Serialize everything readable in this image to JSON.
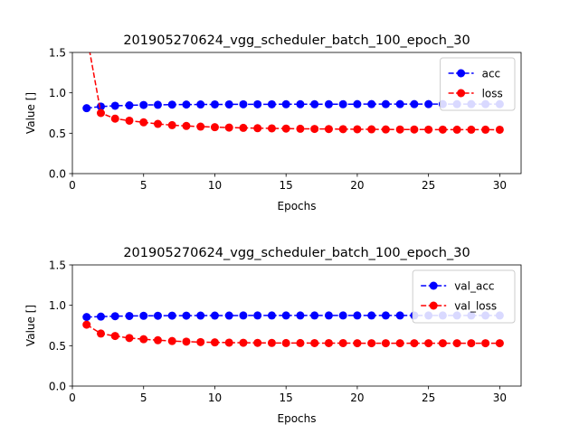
{
  "chart_data": [
    {
      "type": "line",
      "title": "201905270624_vgg_scheduler_batch_100_epoch_30",
      "xlabel": "Epochs",
      "ylabel": "Value []",
      "xlim": [
        0,
        31.5
      ],
      "ylim": [
        0.0,
        1.5
      ],
      "xticks": [
        0,
        5,
        10,
        15,
        20,
        25,
        30
      ],
      "yticks": [
        "0.0",
        "0.5",
        "1.0",
        "1.5"
      ],
      "grid": false,
      "legend_position": "top-right",
      "x": [
        1,
        2,
        3,
        4,
        5,
        6,
        7,
        8,
        9,
        10,
        11,
        12,
        13,
        14,
        15,
        16,
        17,
        18,
        19,
        20,
        21,
        22,
        23,
        24,
        25,
        26,
        27,
        28,
        29,
        30
      ],
      "series": [
        {
          "name": "acc",
          "color": "#0000ff",
          "values": [
            0.81,
            0.83,
            0.84,
            0.845,
            0.85,
            0.852,
            0.854,
            0.855,
            0.856,
            0.857,
            0.857,
            0.858,
            0.858,
            0.858,
            0.859,
            0.859,
            0.859,
            0.859,
            0.859,
            0.86,
            0.86,
            0.86,
            0.86,
            0.86,
            0.86,
            0.86,
            0.86,
            0.86,
            0.86,
            0.86
          ]
        },
        {
          "name": "loss",
          "color": "#ff0000",
          "values": [
            1.72,
            0.75,
            0.68,
            0.655,
            0.635,
            0.615,
            0.6,
            0.59,
            0.582,
            0.575,
            0.57,
            0.566,
            0.562,
            0.56,
            0.557,
            0.555,
            0.553,
            0.552,
            0.55,
            0.549,
            0.548,
            0.547,
            0.546,
            0.546,
            0.545,
            0.545,
            0.544,
            0.544,
            0.544,
            0.543
          ]
        }
      ]
    },
    {
      "type": "line",
      "title": "201905270624_vgg_scheduler_batch_100_epoch_30",
      "xlabel": "Epochs",
      "ylabel": "Value []",
      "xlim": [
        0,
        31.5
      ],
      "ylim": [
        0.0,
        1.5
      ],
      "xticks": [
        0,
        5,
        10,
        15,
        20,
        25,
        30
      ],
      "yticks": [
        "0.0",
        "0.5",
        "1.0",
        "1.5"
      ],
      "grid": false,
      "legend_position": "top-right",
      "x": [
        1,
        2,
        3,
        4,
        5,
        6,
        7,
        8,
        9,
        10,
        11,
        12,
        13,
        14,
        15,
        16,
        17,
        18,
        19,
        20,
        21,
        22,
        23,
        24,
        25,
        26,
        27,
        28,
        29,
        30
      ],
      "series": [
        {
          "name": "val_acc",
          "color": "#0000ff",
          "values": [
            0.855,
            0.86,
            0.865,
            0.868,
            0.87,
            0.871,
            0.872,
            0.872,
            0.873,
            0.873,
            0.873,
            0.874,
            0.874,
            0.874,
            0.874,
            0.874,
            0.874,
            0.874,
            0.874,
            0.874,
            0.874,
            0.874,
            0.874,
            0.874,
            0.874,
            0.874,
            0.874,
            0.874,
            0.874,
            0.874
          ]
        },
        {
          "name": "val_loss",
          "color": "#ff0000",
          "values": [
            0.76,
            0.65,
            0.62,
            0.595,
            0.58,
            0.568,
            0.558,
            0.55,
            0.545,
            0.541,
            0.538,
            0.536,
            0.535,
            0.534,
            0.533,
            0.533,
            0.532,
            0.532,
            0.532,
            0.531,
            0.531,
            0.531,
            0.531,
            0.531,
            0.531,
            0.531,
            0.531,
            0.531,
            0.531,
            0.531
          ]
        }
      ]
    }
  ]
}
